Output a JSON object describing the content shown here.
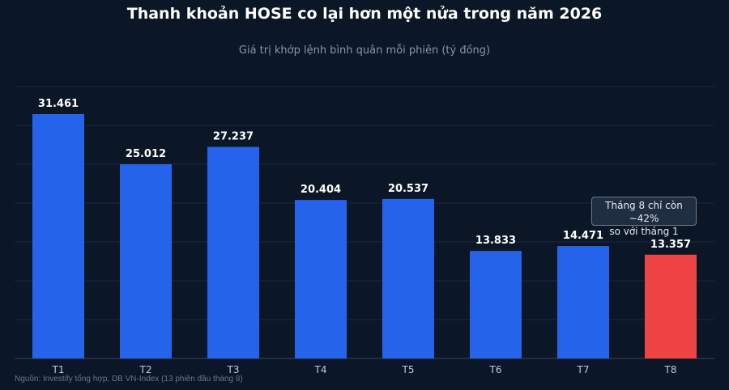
{
  "chart_data": {
    "type": "bar",
    "title": "Thanh khoản HOSE co lại hơn một nửa trong năm 2026",
    "subtitle": "Giá trị khớp lệnh bình quân mỗi phiên (tỷ đồng)",
    "categories": [
      "T1",
      "T2",
      "T3",
      "T4",
      "T5",
      "T6",
      "T7",
      "T8"
    ],
    "values": [
      31461,
      25012,
      27237,
      20404,
      20537,
      13833,
      14471,
      13357
    ],
    "data_labels": [
      "31.461",
      "25.012",
      "27.237",
      "20.404",
      "20.537",
      "13.833",
      "14.471",
      "13.357"
    ],
    "ylim": [
      0,
      35000
    ],
    "grid": true,
    "bar_color": "#2563eb",
    "highlight_color": "#ef4444",
    "highlight_index": 7,
    "annotation": {
      "line1": "Tháng 8 chỉ còn ~42%",
      "line2": "so với tháng 1"
    },
    "source": "Nguồn: Investify tổng hợp, DB VN-Index (13 phiên đầu tháng 8)"
  }
}
